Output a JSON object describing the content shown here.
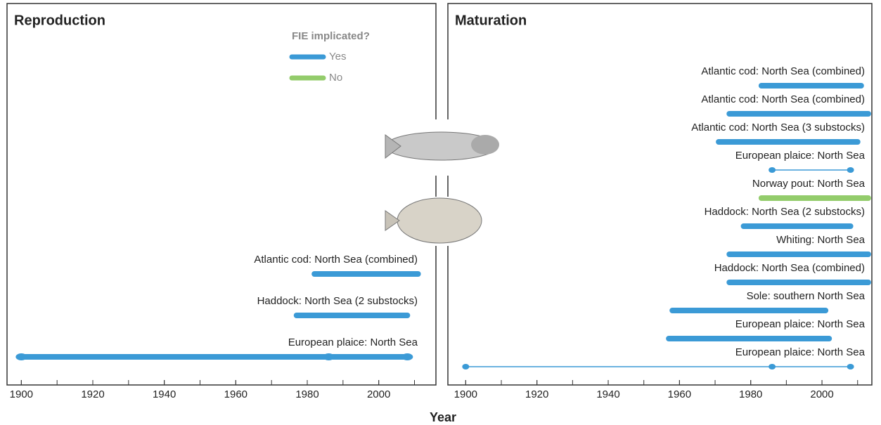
{
  "chart_data": [
    {
      "type": "range",
      "title": "Reproduction",
      "legend": {
        "title": "FIE implicated?",
        "entries": [
          {
            "name": "Yes",
            "color": "#3b9ad6"
          },
          {
            "name": "No",
            "color": "#93cc6b"
          }
        ]
      },
      "bars": [
        {
          "label": "Atlantic cod: North Sea (combined)",
          "start": 1982,
          "end": 2011,
          "color": "#3b9ad6"
        },
        {
          "label": "Haddock: North Sea (2 substocks)",
          "start": 1977,
          "end": 2008,
          "color": "#3b9ad6"
        },
        {
          "label": "European plaice: North Sea",
          "start": 1900,
          "end": 2008,
          "points": [
            1900,
            1986,
            2008
          ],
          "color": "#3b9ad6"
        }
      ],
      "xlim": [
        1896,
        2016
      ],
      "xticks": [
        1900,
        1920,
        1940,
        1960,
        1980,
        2000
      ],
      "minor_xticks": [
        1900,
        1910,
        1920,
        1930,
        1940,
        1950,
        1960,
        1970,
        1980,
        1990,
        2000,
        2010
      ]
    },
    {
      "type": "range",
      "title": "Maturation",
      "bars": [
        {
          "label": "Atlantic cod: North Sea (combined)",
          "start": 1983,
          "end": 2011,
          "color": "#3b9ad6"
        },
        {
          "label": "Atlantic cod: North Sea (combined)",
          "start": 1974,
          "end": 2013,
          "color": "#3b9ad6"
        },
        {
          "label": "Atlantic cod: North Sea (3 substocks)",
          "start": 1971,
          "end": 2010,
          "color": "#3b9ad6"
        },
        {
          "label": "European plaice: North Sea",
          "start": 1986,
          "end": 2008,
          "points": [
            1986,
            2008
          ],
          "thin": true,
          "color": "#3b9ad6"
        },
        {
          "label": "Norway pout: North Sea",
          "start": 1983,
          "end": 2013,
          "color": "#93cc6b"
        },
        {
          "label": "Haddock: North Sea (2 substocks)",
          "start": 1978,
          "end": 2008,
          "color": "#3b9ad6"
        },
        {
          "label": "Whiting: North Sea",
          "start": 1974,
          "end": 2013,
          "color": "#3b9ad6"
        },
        {
          "label": "Haddock: North Sea (combined)",
          "start": 1974,
          "end": 2013,
          "color": "#3b9ad6"
        },
        {
          "label": "Sole: southern North Sea",
          "start": 1958,
          "end": 2001,
          "color": "#3b9ad6"
        },
        {
          "label": "European plaice: North Sea",
          "start": 1957,
          "end": 2002,
          "color": "#3b9ad6"
        },
        {
          "label": "European plaice: North Sea",
          "start": 1900,
          "end": 2008,
          "points": [
            1900,
            1986,
            2008
          ],
          "thin": true,
          "color": "#3b9ad6"
        }
      ],
      "xlim": [
        1895,
        2014
      ],
      "xticks": [
        1900,
        1920,
        1940,
        1960,
        1980,
        2000
      ],
      "minor_xticks": [
        1900,
        1910,
        1920,
        1930,
        1940,
        1950,
        1960,
        1970,
        1980,
        1990,
        2000,
        2010
      ]
    }
  ],
  "x_axis_label": "Year"
}
